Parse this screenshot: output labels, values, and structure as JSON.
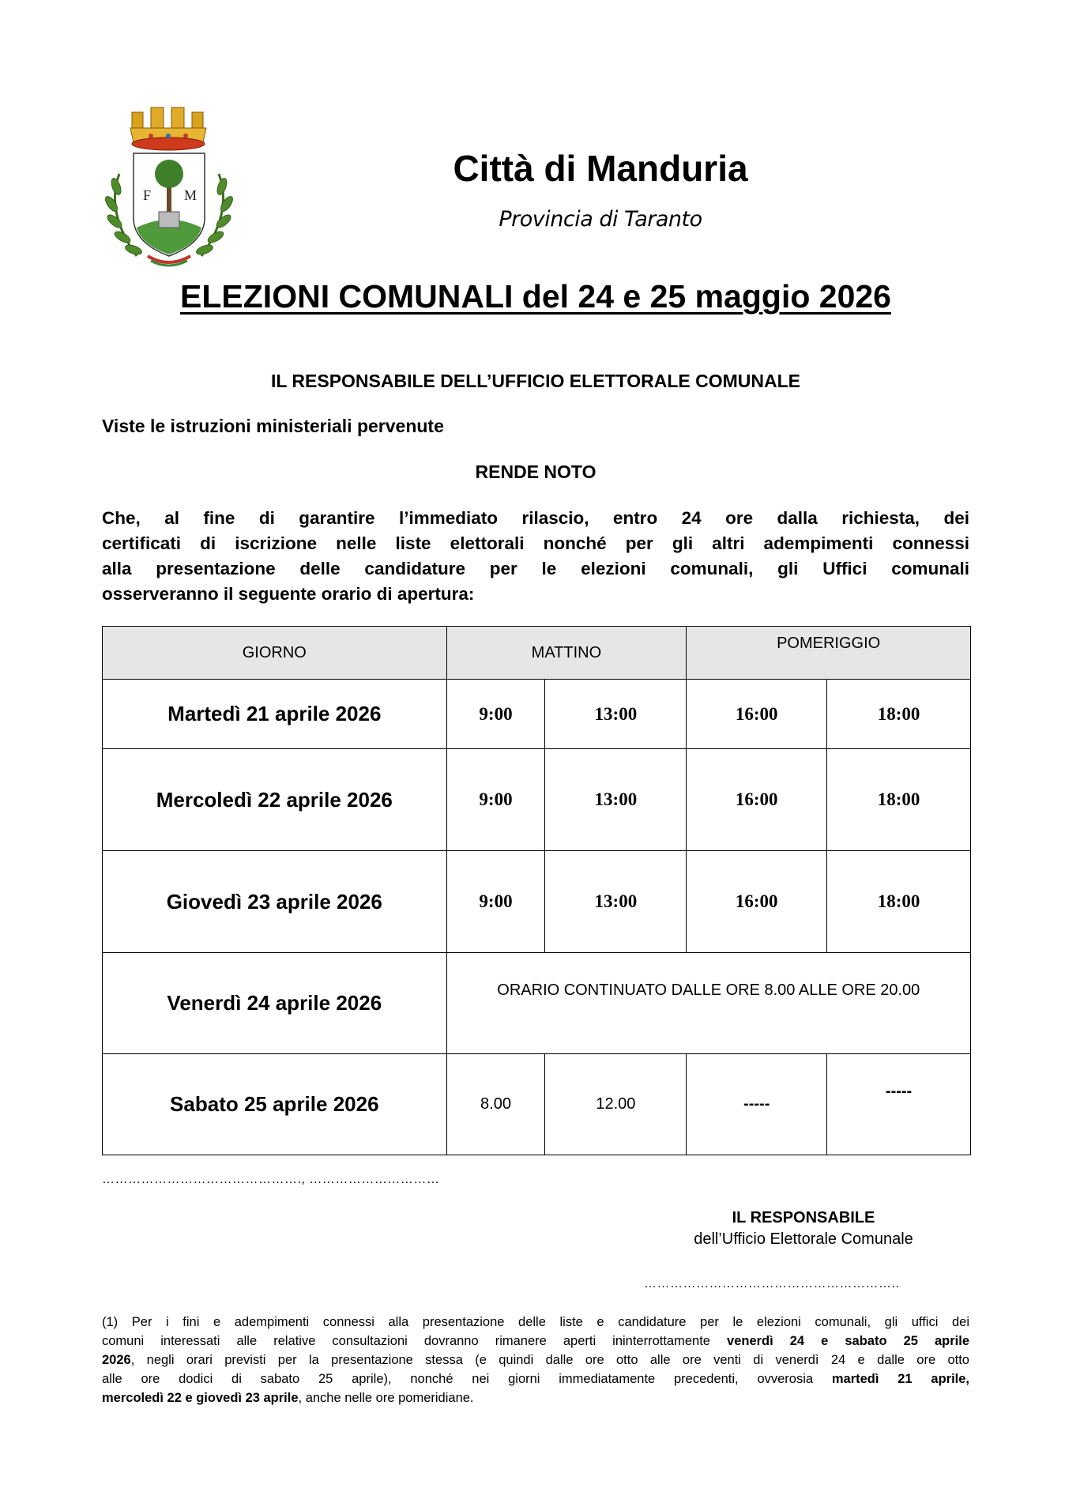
{
  "header": {
    "logo": {
      "name": "city-coat-of-arms",
      "letters": [
        "F",
        "M"
      ]
    },
    "city": "Città di Manduria",
    "province": "Provincia di Taranto"
  },
  "title": "ELEZIONI COMUNALI del 24 e 25 maggio 2026",
  "issuer": "IL RESPONSABILE DELL’UFFICIO ELETTORALE COMUNALE",
  "preamble": "Viste le istruzioni ministeriali pervenute",
  "announce": "RENDE NOTO",
  "body_lines": [
    "Che, al fine di garantire l’immediato rilascio, entro 24 ore dalla richiesta, dei",
    "certificati di iscrizione nelle liste elettorali nonché per gli altri adempimenti connessi",
    "alla presentazione delle candidature per le elezioni comunali, gli Uffici comunali",
    "osserveranno il seguente orario di apertura:"
  ],
  "table": {
    "headers": [
      "GIORNO",
      "MATTINO",
      "POMERIGGIO"
    ],
    "rows": [
      {
        "day": "Martedì 21 aprile 2026",
        "times": [
          "9:00",
          "13:00",
          "16:00",
          "18:00"
        ]
      },
      {
        "day": "Mercoledì 22 aprile 2026",
        "times": [
          "9:00",
          "13:00",
          "16:00",
          "18:00"
        ]
      },
      {
        "day": "Giovedì 23 aprile 2026",
        "times": [
          "9:00",
          "13:00",
          "16:00",
          "18:00"
        ]
      },
      {
        "day": "Venerdì 24 aprile 2026",
        "note": "ORARIO CONTINUATO DALLE ORE 8.00 ALLE ORE 20.00"
      },
      {
        "day": "Sabato 25 aprile 2026",
        "times": [
          "8.00",
          "12.00",
          "-----",
          "-----"
        ]
      }
    ]
  },
  "place_date_line": "………………………………………., …………………………",
  "signature": {
    "line1": "IL RESPONSABILE",
    "line2": "dell’Ufficio Elettorale Comunale",
    "dots": "………………………………………………….."
  },
  "footnote_lines": [
    [
      {
        "t": "(1) Per i fini e adempimenti connessi alla presentazione delle liste e candidature per le elezioni comunali, gli uffici dei",
        "b": false
      }
    ],
    [
      {
        "t": "comuni interessati alle relative consultazioni dovranno rimanere aperti ininterrottamente ",
        "b": false
      },
      {
        "t": "venerdì 24 e sabato 25 aprile",
        "b": true
      }
    ],
    [
      {
        "t": "2026",
        "b": true
      },
      {
        "t": ", negli orari previsti per la presentazione stessa (e quindi dalle ore otto alle ore venti di venerdì 24 e dalle ore otto",
        "b": false
      }
    ],
    [
      {
        "t": "alle ore dodici di sabato 25 aprile), nonché nei giorni immediatamente precedenti, ovverosia ",
        "b": false
      },
      {
        "t": "martedì 21 aprile,",
        "b": true
      }
    ],
    [
      {
        "t": "mercoledì 22 e giovedì 23 aprile",
        "b": true
      },
      {
        "t": ", anche nelle ore pomeridiane.",
        "b": false
      }
    ]
  ]
}
